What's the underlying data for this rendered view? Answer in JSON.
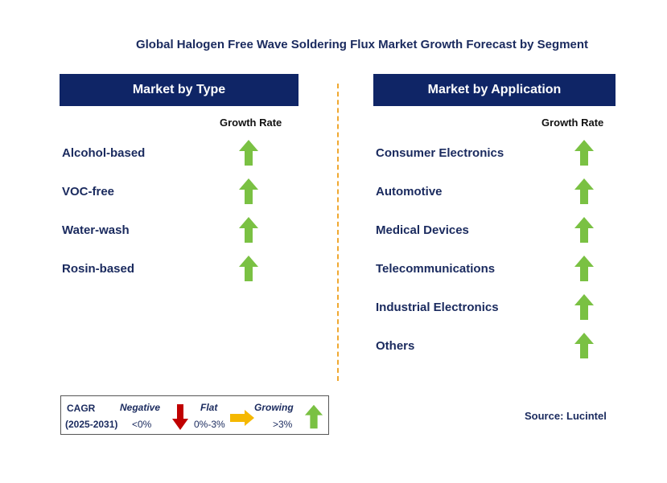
{
  "title": "Global Halogen Free Wave Soldering Flux Market Growth Forecast by Segment",
  "colors": {
    "header_bg": "#0f2566",
    "arrow_up": "#7ac143",
    "arrow_down": "#c00000",
    "arrow_flat": "#f5b800",
    "divider": "#f0a830",
    "text": "#1a2a5e"
  },
  "left_panel": {
    "header": "Market by Type",
    "growth_label": "Growth Rate",
    "items": [
      {
        "label": "Alcohol-based",
        "trend": "growing"
      },
      {
        "label": "VOC-free",
        "trend": "growing"
      },
      {
        "label": "Water-wash",
        "trend": "growing"
      },
      {
        "label": "Rosin-based",
        "trend": "growing"
      }
    ]
  },
  "right_panel": {
    "header": "Market by Application",
    "growth_label": "Growth Rate",
    "items": [
      {
        "label": "Consumer Electronics",
        "trend": "growing"
      },
      {
        "label": "Automotive",
        "trend": "growing"
      },
      {
        "label": "Medical Devices",
        "trend": "growing"
      },
      {
        "label": "Telecommunications",
        "trend": "growing"
      },
      {
        "label": "Industrial Electronics",
        "trend": "growing"
      },
      {
        "label": "Others",
        "trend": "growing"
      }
    ]
  },
  "legend": {
    "cagr_label": "CAGR",
    "period": "(2025-2031)",
    "negative_label": "Negative",
    "negative_value": "<0%",
    "flat_label": "Flat",
    "flat_value": "0%-3%",
    "growing_label": "Growing",
    "growing_value": ">3%"
  },
  "source": "Source: Lucintel"
}
